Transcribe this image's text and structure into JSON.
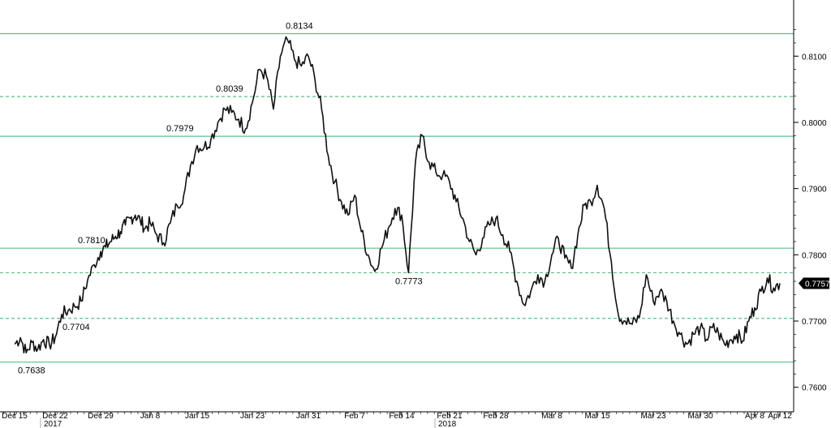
{
  "chart_data": {
    "type": "line",
    "title": "",
    "xlabel": "",
    "ylabel": "",
    "ylim": [
      0.7585,
      0.8175
    ],
    "y_ticks": [
      "0.8100",
      "0.8000",
      "0.7900",
      "0.7800",
      "0.7700",
      "0.7600"
    ],
    "x_ticks": [
      "Dec 15",
      "Dec 22",
      "Dec 29",
      "Jan 8",
      "Jan 15",
      "Jan 23",
      "Jan 31",
      "Feb 7",
      "Feb 14",
      "Feb 21",
      "Feb 28",
      "Mar 8",
      "Mar 15",
      "Mar 23",
      "Mar 30",
      "Apr 8",
      "Apr 12"
    ],
    "year_labels": [
      "2017",
      "2018"
    ],
    "grid": false,
    "line_color": "#111111",
    "level_color": "#5cbf8a",
    "last_value": "0.7757",
    "levels": [
      {
        "value": 0.8134,
        "label": "0.8134",
        "style": "solid"
      },
      {
        "value": 0.8039,
        "label": "0.8039",
        "style": "dashed"
      },
      {
        "value": 0.7979,
        "label": "0.7979",
        "style": "solid"
      },
      {
        "value": 0.781,
        "label": "0.7810",
        "style": "solid"
      },
      {
        "value": 0.7773,
        "label": "0.7773",
        "style": "dashed"
      },
      {
        "value": 0.7704,
        "label": "0.7704",
        "style": "dashed"
      },
      {
        "value": 0.7638,
        "label": "0.7638",
        "style": "solid"
      }
    ],
    "series": [
      {
        "values": [
          [
            "Dec 15",
            0.7665
          ],
          [
            "Dec 16",
            0.7675
          ],
          [
            "Dec 17",
            0.7652
          ],
          [
            "Dec 18",
            0.7668
          ],
          [
            "Dec 19",
            0.7658
          ],
          [
            "Dec 20",
            0.7672
          ],
          [
            "Dec 21",
            0.7664
          ],
          [
            "Dec 22",
            0.7675
          ],
          [
            "Dec 23",
            0.771
          ],
          [
            "Dec 24",
            0.7716
          ],
          [
            "Dec 25",
            0.7722
          ],
          [
            "Dec 26",
            0.773
          ],
          [
            "Dec 27",
            0.7762
          ],
          [
            "Dec 28",
            0.7785
          ],
          [
            "Dec 29",
            0.7805
          ],
          [
            "Dec 30",
            0.7812
          ],
          [
            "Dec 31",
            0.782
          ],
          [
            "Jan 1",
            0.7828
          ],
          [
            "Jan 2",
            0.7835
          ],
          [
            "Jan 3",
            0.7845
          ],
          [
            "Jan 4",
            0.7855
          ],
          [
            "Jan 5",
            0.786
          ],
          [
            "Jan 6",
            0.7852
          ],
          [
            "Jan 7",
            0.784
          ],
          [
            "Jan 8",
            0.7848
          ],
          [
            "Jan 9",
            0.783
          ],
          [
            "Jan 10",
            0.7818
          ],
          [
            "Jan 11",
            0.7848
          ],
          [
            "Jan 12",
            0.7875
          ],
          [
            "Jan 13",
            0.789
          ],
          [
            "Jan 14",
            0.7935
          ],
          [
            "Jan 15",
            0.7965
          ],
          [
            "Jan 16",
            0.7962
          ],
          [
            "Jan 17",
            0.7975
          ],
          [
            "Jan 18",
            0.8
          ],
          [
            "Jan 19",
            0.802
          ],
          [
            "Jan 20",
            0.8015
          ],
          [
            "Jan 21",
            0.8005
          ],
          [
            "Jan 22",
            0.799
          ],
          [
            "Jan 23",
            0.803
          ],
          [
            "Jan 24",
            0.808
          ],
          [
            "Jan 25",
            0.807
          ],
          [
            "Jan 26",
            0.802
          ],
          [
            "Jan 27",
            0.81
          ],
          [
            "Jan 28",
            0.8125
          ],
          [
            "Jan 29",
            0.8095
          ],
          [
            "Jan 30",
            0.8085
          ],
          [
            "Jan 31",
            0.81
          ],
          [
            "Feb 1",
            0.8065
          ],
          [
            "Feb 2",
            0.802
          ],
          [
            "Feb 3",
            0.795
          ],
          [
            "Feb 4",
            0.791
          ],
          [
            "Feb 5",
            0.788
          ],
          [
            "Feb 6",
            0.786
          ],
          [
            "Feb 7",
            0.789
          ],
          [
            "Feb 8",
            0.7835
          ],
          [
            "Feb 9",
            0.78
          ],
          [
            "Feb 10",
            0.7775
          ],
          [
            "Feb 11",
            0.781
          ],
          [
            "Feb 12",
            0.784
          ],
          [
            "Feb 13",
            0.787
          ],
          [
            "Feb 14",
            0.786
          ],
          [
            "Feb 15",
            0.7773
          ],
          [
            "Feb 16",
            0.794
          ],
          [
            "Feb 17",
            0.798
          ],
          [
            "Feb 18",
            0.794
          ],
          [
            "Feb 19",
            0.7925
          ],
          [
            "Feb 20",
            0.792
          ],
          [
            "Feb 21",
            0.791
          ],
          [
            "Feb 22",
            0.788
          ],
          [
            "Feb 23",
            0.7855
          ],
          [
            "Feb 24",
            0.782
          ],
          [
            "Feb 25",
            0.78
          ],
          [
            "Feb 26",
            0.7825
          ],
          [
            "Feb 27",
            0.7845
          ],
          [
            "Feb 28",
            0.7855
          ],
          [
            "Mar 1",
            0.783
          ],
          [
            "Mar 2",
            0.7805
          ],
          [
            "Mar 3",
            0.776
          ],
          [
            "Mar 4",
            0.7725
          ],
          [
            "Mar 5",
            0.7745
          ],
          [
            "Mar 6",
            0.777
          ],
          [
            "Mar 7",
            0.776
          ],
          [
            "Mar 8",
            0.78
          ],
          [
            "Mar 9",
            0.7825
          ],
          [
            "Mar 10",
            0.7795
          ],
          [
            "Mar 11",
            0.778
          ],
          [
            "Mar 12",
            0.783
          ],
          [
            "Mar 13",
            0.7875
          ],
          [
            "Mar 14",
            0.788
          ],
          [
            "Mar 15",
            0.7905
          ],
          [
            "Mar 16",
            0.787
          ],
          [
            "Mar 17",
            0.779
          ],
          [
            "Mar 18",
            0.771
          ],
          [
            "Mar 19",
            0.77
          ],
          [
            "Mar 20",
            0.7695
          ],
          [
            "Mar 21",
            0.7705
          ],
          [
            "Mar 22",
            0.777
          ],
          [
            "Mar 23",
            0.773
          ],
          [
            "Mar 24",
            0.7745
          ],
          [
            "Mar 25",
            0.773
          ],
          [
            "Mar 26",
            0.77
          ],
          [
            "Mar 27",
            0.768
          ],
          [
            "Mar 28",
            0.7665
          ],
          [
            "Mar 29",
            0.768
          ],
          [
            "Mar 30",
            0.769
          ],
          [
            "Mar 31",
            0.7672
          ],
          [
            "Apr 1",
            0.769
          ],
          [
            "Apr 2",
            0.7682
          ],
          [
            "Apr 3",
            0.7665
          ],
          [
            "Apr 4",
            0.7672
          ],
          [
            "Apr 5",
            0.768
          ],
          [
            "Apr 6",
            0.767
          ],
          [
            "Apr 7",
            0.77
          ],
          [
            "Apr 8",
            0.772
          ],
          [
            "Apr 9",
            0.7745
          ],
          [
            "Apr 10",
            0.7765
          ],
          [
            "Apr 11",
            0.775
          ],
          [
            "Apr 12",
            0.7757
          ]
        ]
      }
    ]
  }
}
